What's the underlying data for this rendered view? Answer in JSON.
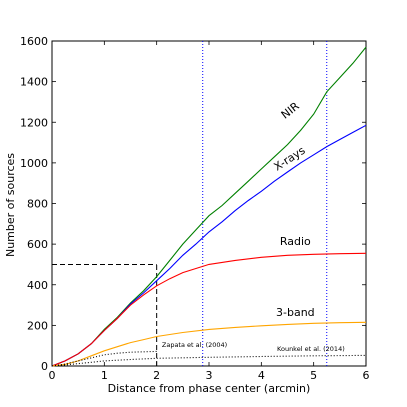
{
  "chart_data": {
    "type": "line",
    "xlabel": "Distance from phase center (arcmin)",
    "ylabel": "Number of sources",
    "xlim": [
      0,
      6
    ],
    "ylim": [
      0,
      1600
    ],
    "xticks": [
      "0",
      "1",
      "2",
      "3",
      "4",
      "5",
      "6"
    ],
    "yticks": [
      "0",
      "200",
      "400",
      "600",
      "800",
      "1000",
      "1200",
      "1400",
      "1600"
    ],
    "grid": false,
    "series": [
      {
        "name": "NIR",
        "color": "#008000",
        "style": "solid",
        "x": [
          0,
          0.25,
          0.5,
          0.75,
          1.0,
          1.25,
          1.5,
          1.75,
          2.0,
          2.25,
          2.5,
          2.75,
          3.0,
          3.25,
          3.5,
          3.75,
          4.0,
          4.25,
          4.5,
          4.75,
          5.0,
          5.25,
          5.5,
          5.75,
          6.0
        ],
        "values": [
          0,
          25,
          60,
          110,
          180,
          240,
          310,
          370,
          440,
          520,
          600,
          670,
          740,
          790,
          850,
          910,
          970,
          1030,
          1090,
          1160,
          1240,
          1350,
          1420,
          1490,
          1570
        ]
      },
      {
        "name": "X-rays",
        "color": "#0000ff",
        "style": "solid",
        "x": [
          0,
          0.25,
          0.5,
          0.75,
          1.0,
          1.25,
          1.5,
          1.75,
          2.0,
          2.25,
          2.5,
          2.75,
          3.0,
          3.25,
          3.5,
          3.75,
          4.0,
          4.25,
          4.5,
          4.75,
          5.0,
          5.25,
          5.5,
          5.75,
          6.0
        ],
        "values": [
          0,
          25,
          60,
          110,
          175,
          235,
          305,
          360,
          420,
          480,
          545,
          600,
          660,
          710,
          765,
          815,
          860,
          910,
          955,
          1000,
          1040,
          1080,
          1115,
          1150,
          1185
        ]
      },
      {
        "name": "Radio",
        "color": "#ff0000",
        "style": "solid",
        "x": [
          0,
          0.25,
          0.5,
          0.75,
          1.0,
          1.25,
          1.5,
          1.75,
          2.0,
          2.25,
          2.5,
          2.75,
          3.0,
          3.25,
          3.5,
          4.0,
          4.5,
          5.0,
          5.5,
          6.0
        ],
        "values": [
          0,
          25,
          60,
          110,
          175,
          235,
          300,
          350,
          395,
          430,
          460,
          480,
          500,
          510,
          520,
          535,
          545,
          550,
          553,
          555
        ]
      },
      {
        "name": "3-band",
        "color": "#ffa500",
        "style": "solid",
        "x": [
          0,
          0.25,
          0.5,
          0.75,
          1.0,
          1.25,
          1.5,
          1.75,
          2.0,
          2.5,
          3.0,
          3.5,
          4.0,
          4.5,
          5.0,
          5.5,
          6.0
        ],
        "values": [
          0,
          8,
          25,
          50,
          75,
          95,
          115,
          130,
          145,
          165,
          180,
          190,
          198,
          205,
          210,
          213,
          215
        ]
      },
      {
        "name": "Zapata et al. (2004)",
        "color": "#000000",
        "style": "dotted",
        "x": [
          0,
          0.25,
          0.5,
          0.75,
          1.0,
          1.25,
          1.5,
          1.75,
          2.0
        ],
        "values": [
          0,
          10,
          25,
          40,
          55,
          63,
          68,
          70,
          72
        ]
      },
      {
        "name": "Kounkel et al. (2014)",
        "color": "#000000",
        "style": "dotted",
        "x": [
          0,
          0.25,
          0.5,
          0.75,
          1.0,
          1.5,
          2.0,
          3.0,
          4.0,
          5.0,
          6.0
        ],
        "values": [
          0,
          5,
          12,
          18,
          25,
          32,
          38,
          43,
          47,
          50,
          52
        ]
      }
    ],
    "reference_lines": [
      {
        "orientation": "vertical",
        "x": 2.88,
        "color": "#0000ff",
        "style": "dotted"
      },
      {
        "orientation": "vertical",
        "x": 5.25,
        "color": "#0000ff",
        "style": "dotted"
      },
      {
        "orientation": "horizontal",
        "y": 500,
        "from_x": 0,
        "to_x": 2.0,
        "color": "#000000",
        "style": "dashed"
      },
      {
        "orientation": "vertical",
        "x": 2.0,
        "from_y": 0,
        "to_y": 500,
        "color": "#000000",
        "style": "dashed"
      }
    ],
    "annotations": [
      {
        "text": "NIR",
        "x": 4.45,
        "y": 1215,
        "rotate": -38,
        "size": 11,
        "anchor": "start"
      },
      {
        "text": "X-rays",
        "x": 4.3,
        "y": 960,
        "rotate": -33,
        "size": 11,
        "anchor": "start"
      },
      {
        "text": "Radio",
        "x": 4.65,
        "y": 595,
        "rotate": 0,
        "size": 11,
        "anchor": "middle"
      },
      {
        "text": "3-band",
        "x": 4.65,
        "y": 245,
        "rotate": 0,
        "size": 11,
        "anchor": "middle"
      },
      {
        "text": "Zapata et al. (2004)",
        "x": 2.1,
        "y": 93,
        "rotate": 0,
        "size": 6.5,
        "anchor": "start"
      },
      {
        "text": "Kounkel et al. (2014)",
        "x": 4.3,
        "y": 73,
        "rotate": 0,
        "size": 6.5,
        "anchor": "start"
      }
    ]
  }
}
